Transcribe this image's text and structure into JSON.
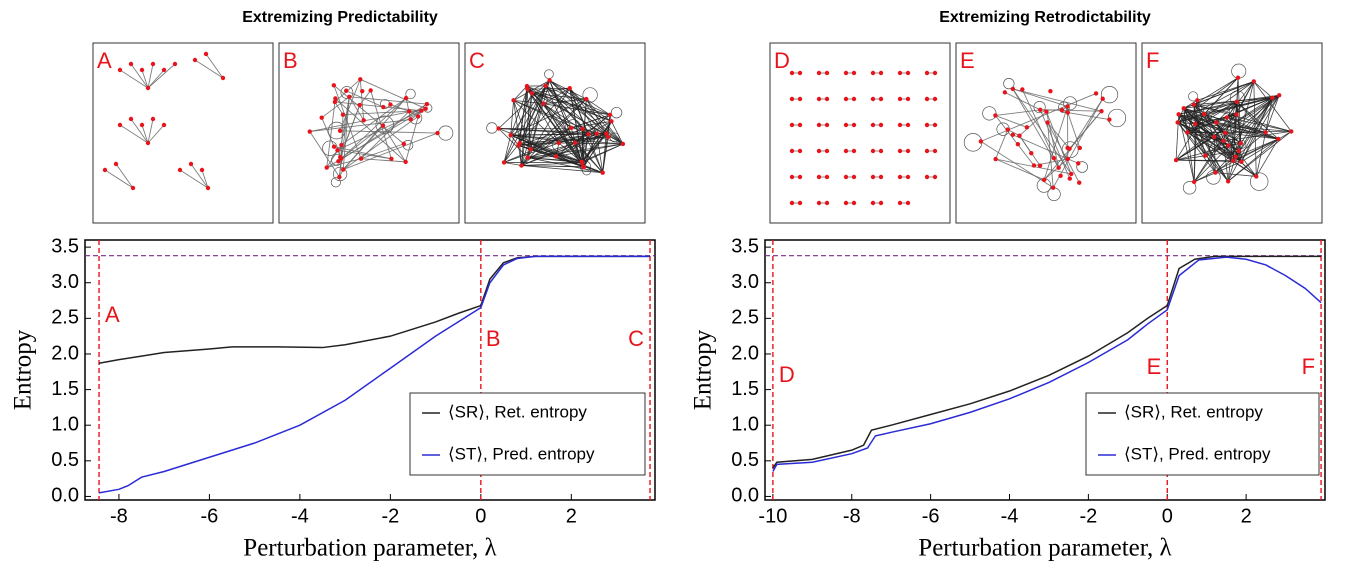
{
  "chart_data": [
    {
      "type": "line",
      "title": "Extremizing Predictability",
      "panels": [
        "A",
        "B",
        "C"
      ],
      "xlabel": "Perturbation parameter, λ",
      "ylabel": "Entropy",
      "xlim": [
        -8.75,
        3.85
      ],
      "xticks": [
        -8,
        -6,
        -4,
        -2,
        0,
        2
      ],
      "ylim": [
        -0.05,
        3.6
      ],
      "yticks": [
        {
          "value": 0,
          "label": "0.0"
        },
        0.5,
        {
          "value": 1,
          "label": "1.0"
        },
        1.5,
        {
          "value": 2,
          "label": "2.0"
        },
        2.5,
        {
          "value": 3,
          "label": "3.0"
        },
        3.5
      ],
      "hline": 3.38,
      "hline_color": "#7b2a8c",
      "vlines": [
        {
          "value": -8.44,
          "label": "A"
        },
        {
          "value": 0,
          "label": "B"
        },
        {
          "value": 3.74,
          "label": "C"
        }
      ],
      "vline_color": "#e8141c",
      "series": [
        {
          "name": "⟨SR⟩, Ret. entropy",
          "color": "#222222",
          "x": [
            -8.44,
            -8,
            -7.5,
            -7,
            -6,
            -5.5,
            -4.5,
            -3.5,
            -3,
            -2,
            -1,
            -0.5,
            0,
            0.2,
            0.5,
            0.8,
            1.2,
            2,
            3.74
          ],
          "values": [
            1.87,
            1.92,
            1.97,
            2.02,
            2.07,
            2.1,
            2.1,
            2.09,
            2.13,
            2.25,
            2.45,
            2.57,
            2.68,
            3.05,
            3.28,
            3.35,
            3.37,
            3.37,
            3.37
          ]
        },
        {
          "name": "⟨ST⟩, Pred. entropy",
          "color": "#2b2bd6",
          "x": [
            -8.44,
            -8,
            -7.8,
            -7.5,
            -7,
            -6,
            -5,
            -4,
            -3,
            -2,
            -1,
            -0.5,
            0,
            0.2,
            0.5,
            0.8,
            1.2,
            2,
            3.74
          ],
          "values": [
            0.05,
            0.1,
            0.15,
            0.27,
            0.35,
            0.55,
            0.75,
            1.0,
            1.35,
            1.8,
            2.25,
            2.45,
            2.65,
            3.0,
            3.25,
            3.34,
            3.37,
            3.37,
            3.37
          ]
        }
      ]
    },
    {
      "type": "line",
      "title": "Extremizing Retrodictability",
      "panels": [
        "D",
        "E",
        "F"
      ],
      "xlabel": "Perturbation parameter, λ",
      "ylabel": "Entropy",
      "xlim": [
        -10.2,
        4.0
      ],
      "xticks": [
        -10,
        -8,
        -6,
        -4,
        -2,
        0,
        2
      ],
      "ylim": [
        -0.05,
        3.6
      ],
      "yticks": [
        {
          "value": 0,
          "label": "0.0"
        },
        0.5,
        {
          "value": 1,
          "label": "1.0"
        },
        1.5,
        {
          "value": 2,
          "label": "2.0"
        },
        2.5,
        {
          "value": 3,
          "label": "3.0"
        },
        3.5
      ],
      "hline": 3.38,
      "hline_color": "#7b2a8c",
      "vlines": [
        {
          "value": -10,
          "label": "D"
        },
        {
          "value": 0,
          "label": "E"
        },
        {
          "value": 3.9,
          "label": "F"
        }
      ],
      "vline_color": "#e8141c",
      "series": [
        {
          "name": "⟨SR⟩, Ret. entropy",
          "color": "#222222",
          "x": [
            -10,
            -9.9,
            -9,
            -8,
            -7.7,
            -7.5,
            -7,
            -6,
            -5,
            -4,
            -3,
            -2,
            -1,
            -0.5,
            0,
            0.3,
            0.7,
            1.2,
            3.9
          ],
          "values": [
            0.4,
            0.48,
            0.52,
            0.65,
            0.72,
            0.93,
            1.0,
            1.15,
            1.3,
            1.48,
            1.7,
            1.97,
            2.3,
            2.5,
            2.68,
            3.2,
            3.33,
            3.37,
            3.37
          ]
        },
        {
          "name": "⟨ST⟩, Pred. entropy",
          "color": "#2b2bd6",
          "x": [
            -10,
            -9.9,
            -9,
            -8,
            -7.6,
            -7.4,
            -7,
            -6,
            -5,
            -4,
            -3,
            -2,
            -1,
            -0.5,
            0,
            0.3,
            0.8,
            1.5,
            2,
            2.5,
            3,
            3.5,
            3.9
          ],
          "values": [
            0.35,
            0.45,
            0.48,
            0.6,
            0.68,
            0.85,
            0.9,
            1.02,
            1.18,
            1.37,
            1.6,
            1.88,
            2.2,
            2.42,
            2.62,
            3.1,
            3.32,
            3.36,
            3.33,
            3.25,
            3.1,
            2.92,
            2.72
          ]
        }
      ]
    }
  ]
}
